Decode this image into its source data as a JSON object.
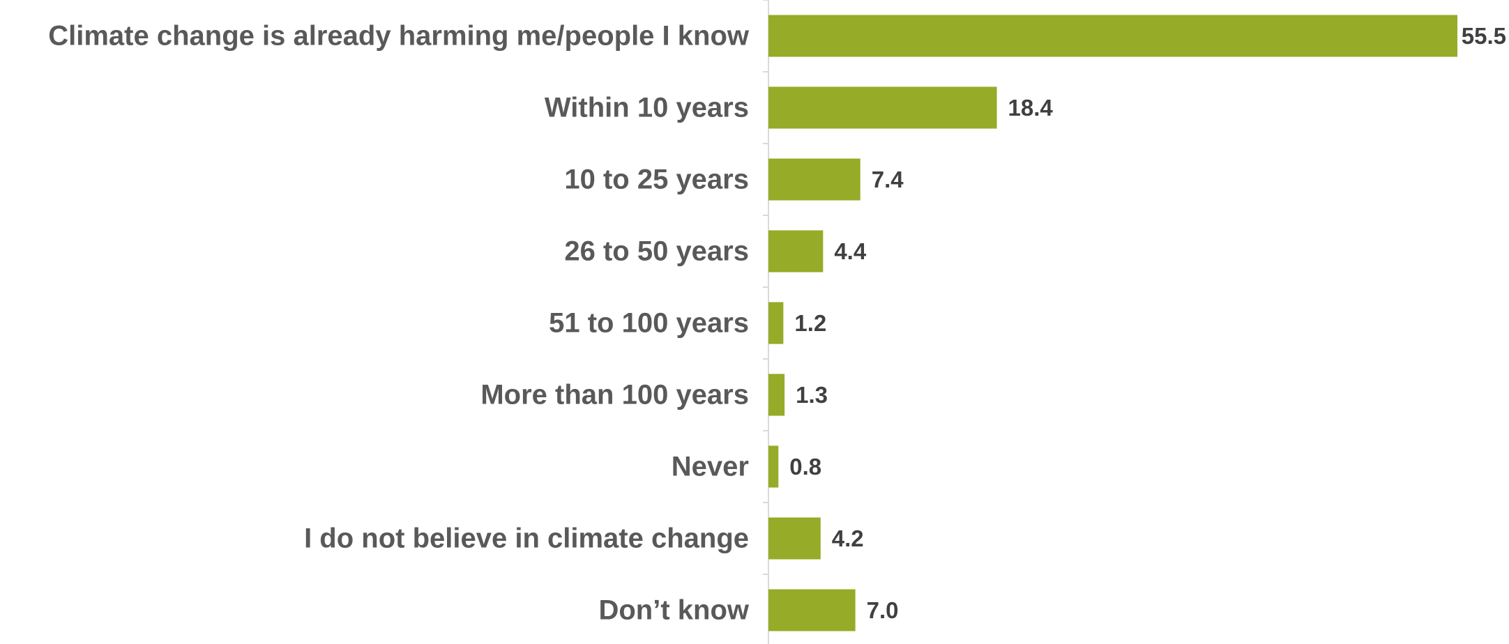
{
  "chart_data": {
    "type": "bar",
    "orientation": "horizontal",
    "categories": [
      "Climate change is already harming me/people I know",
      "Within 10 years",
      "10 to 25 years",
      "26 to 50 years",
      "51 to 100 years",
      "More than 100 years",
      "Never",
      "I do not believe in climate change",
      "Don’t know"
    ],
    "values": [
      55.5,
      18.4,
      7.4,
      4.4,
      1.2,
      1.3,
      0.8,
      4.2,
      7.0
    ],
    "value_labels": [
      "55.5",
      "18.4",
      "7.4",
      "4.4",
      "1.2",
      "1.3",
      "0.8",
      "4.2",
      "7.0"
    ],
    "title": "",
    "xlabel": "",
    "ylabel": "",
    "xlim": [
      0,
      55.5
    ],
    "grid": false,
    "legend": "none",
    "colors": {
      "bar": "#96AB27",
      "axis": "#D9D9D9",
      "category_text": "#595959",
      "value_text": "#404040"
    }
  }
}
